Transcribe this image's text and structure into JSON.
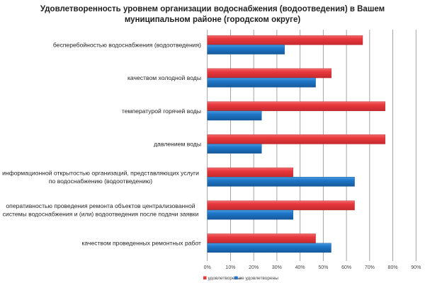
{
  "chart_data": {
    "type": "bar",
    "orientation": "horizontal",
    "title_lines": [
      "Удовлетворенность уровнем организации водоснабжения (водоотведения) в Вашем",
      "муниципальном районе (городском округе)"
    ],
    "categories": [
      [
        "бесперебойностью водоснабжения (водоотведения)"
      ],
      [
        "качеством холодной воды"
      ],
      [
        "температурой горячей воды"
      ],
      [
        "давлением воды"
      ],
      [
        "информационной открытостью организаций, представляющих услуги",
        "по водоснабжению (водоотведению)"
      ],
      [
        "оперативностью проведения  ремонта объектов  централизованной",
        "системы водоснабжения и (или) водоотведения  после подачи заявки"
      ],
      [
        "качеством проведенных ремонтных работ"
      ]
    ],
    "series": [
      {
        "name": "удовлетворены",
        "color": "#e8383d",
        "values": [
          67,
          53.5,
          76.7,
          76.7,
          37,
          63.5,
          46.7
        ]
      },
      {
        "name": "не удовлетворены",
        "color": "#1f77c9",
        "values": [
          33.3,
          46.7,
          23.4,
          23.4,
          63.5,
          37,
          53.4
        ]
      }
    ],
    "xlim": [
      0,
      90
    ],
    "xticks": [
      "0%",
      "10%",
      "20%",
      "30%",
      "40%",
      "50%",
      "60%",
      "70%",
      "80%",
      "90%"
    ],
    "xlabel": "",
    "ylabel": "",
    "grid": true,
    "legend_position": "bottom-left"
  }
}
